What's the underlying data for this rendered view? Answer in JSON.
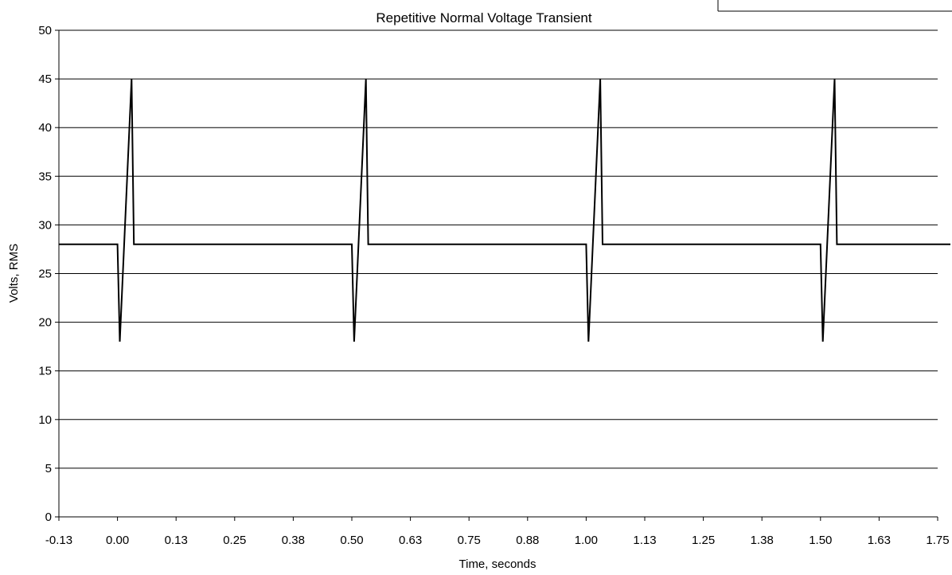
{
  "chart_data": {
    "type": "line",
    "title": "Repetitive Normal Voltage Transient",
    "xlabel": "Time, seconds",
    "ylabel": "Volts, RMS",
    "xlim": [
      -0.125,
      1.75
    ],
    "ylim": [
      0,
      50
    ],
    "x_tick_labels": [
      "-0.13",
      "0.00",
      "0.13",
      "0.25",
      "0.38",
      "0.50",
      "0.63",
      "0.75",
      "0.88",
      "1.00",
      "1.13",
      "1.25",
      "1.38",
      "1.50",
      "1.63",
      "1.75"
    ],
    "y_ticks": [
      0,
      5,
      10,
      15,
      20,
      25,
      30,
      35,
      40,
      45,
      50
    ],
    "grid": "horizontal",
    "legend": "none",
    "series": [
      {
        "color": "#000000",
        "x": [
          -0.125,
          0.0,
          0.005,
          0.03,
          0.035,
          0.5,
          0.505,
          0.53,
          0.535,
          1.0,
          1.005,
          1.03,
          1.035,
          1.5,
          1.505,
          1.53,
          1.535,
          1.75
        ],
        "y": [
          28,
          28,
          18,
          45,
          28,
          28,
          18,
          45,
          28,
          28,
          18,
          45,
          28,
          28,
          18,
          45,
          28,
          28
        ]
      }
    ]
  }
}
